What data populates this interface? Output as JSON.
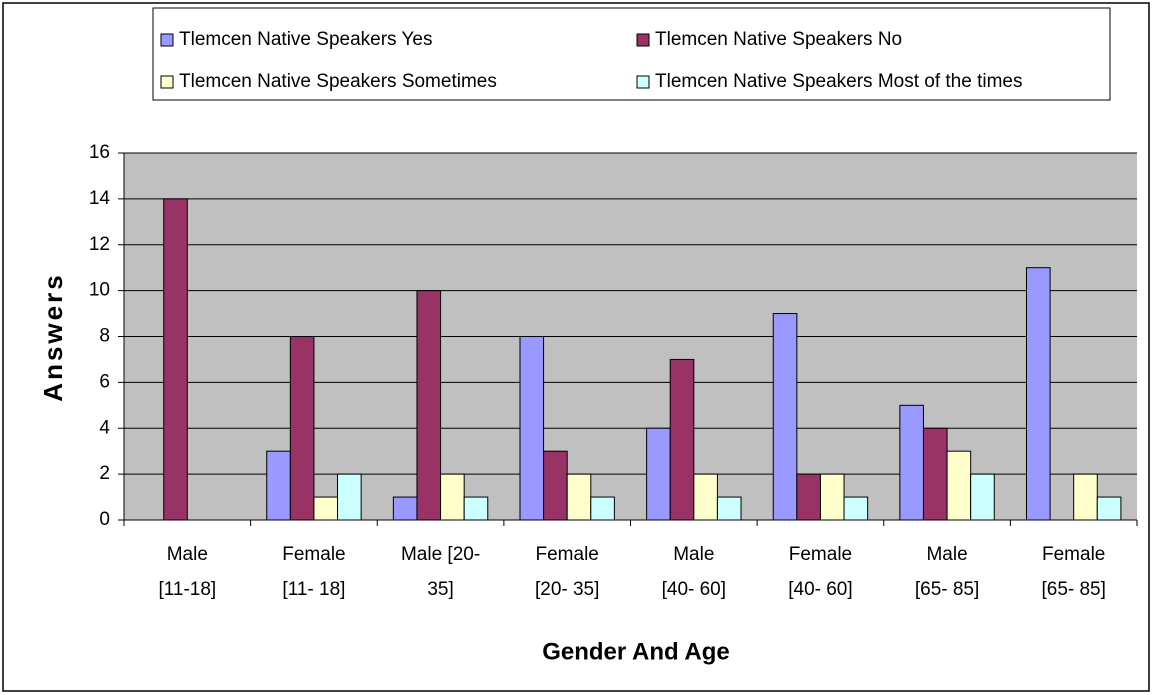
{
  "chart_data": {
    "type": "bar",
    "categories": [
      [
        "Male",
        "[11-18]"
      ],
      [
        "Female",
        "[11- 18]"
      ],
      [
        "Male    [20-",
        "35]"
      ],
      [
        "Female",
        "[20- 35]"
      ],
      [
        "Male",
        "[40- 60]"
      ],
      [
        "Female",
        "[40- 60]"
      ],
      [
        "Male",
        "[65- 85]"
      ],
      [
        "Female",
        "[65- 85]"
      ]
    ],
    "series": [
      {
        "name": "Tlemcen Native Speakers Yes",
        "color": "#9999ff",
        "values": [
          0,
          3,
          1,
          8,
          4,
          9,
          5,
          11
        ]
      },
      {
        "name": "Tlemcen Native Speakers No",
        "color": "#993366",
        "values": [
          14,
          8,
          10,
          3,
          7,
          2,
          4,
          0
        ]
      },
      {
        "name": "Tlemcen Native Speakers Sometimes",
        "color": "#ffffcc",
        "values": [
          0,
          1,
          2,
          2,
          2,
          2,
          3,
          2
        ]
      },
      {
        "name": "Tlemcen Native Speakers Most of the times",
        "color": "#ccffff",
        "values": [
          0,
          2,
          1,
          1,
          1,
          1,
          2,
          1
        ]
      }
    ],
    "xlabel": "Gender And Age",
    "ylabel": "Answers",
    "ylim": [
      0,
      16
    ],
    "yticks": [
      0,
      2,
      4,
      6,
      8,
      10,
      12,
      14,
      16
    ],
    "grid": true,
    "legend": "top"
  }
}
